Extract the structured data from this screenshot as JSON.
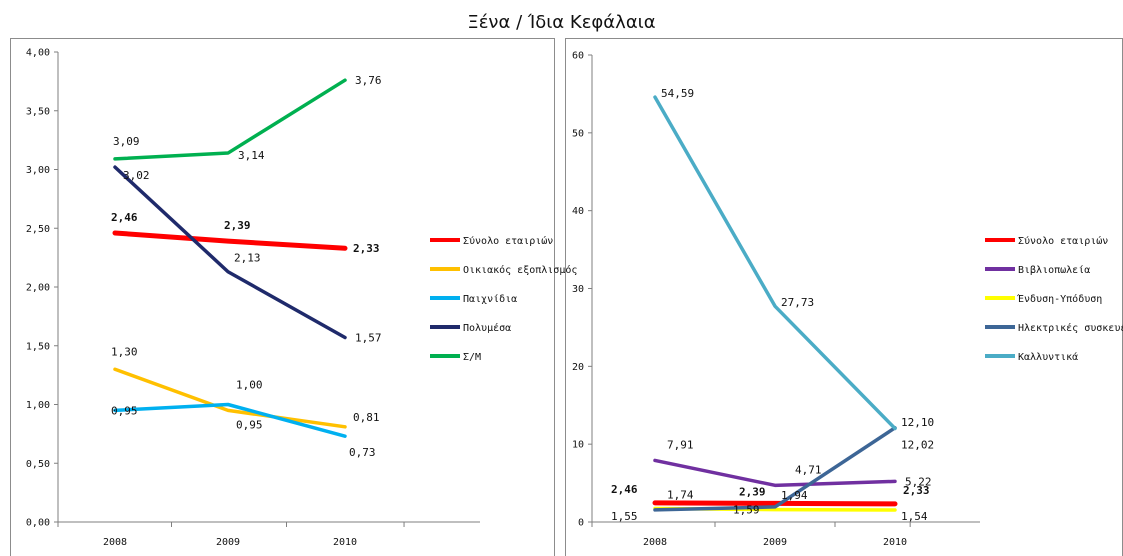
{
  "title": "Ξένα / Ίδια Κεφάλαια",
  "chart_data": [
    {
      "type": "line",
      "categories": [
        "2008",
        "2009",
        "2010"
      ],
      "ylim": [
        0,
        4
      ],
      "ytick_step": 0.5,
      "ytick_labels": [
        "0,00",
        "0,50",
        "1,00",
        "1,50",
        "2,00",
        "2,50",
        "3,00",
        "3,50",
        "4,00"
      ],
      "grid": false,
      "legend_position": "right",
      "series": [
        {
          "name": "Σύνολο εταιριών",
          "color": "#ff0000",
          "values": [
            2.46,
            2.39,
            2.33
          ],
          "labels": [
            "2,46",
            "2,39",
            "2,33"
          ]
        },
        {
          "name": "Οικιακός εξοπλισμός",
          "color": "#ffc000",
          "values": [
            1.3,
            0.95,
            0.81
          ],
          "labels": [
            "1,30",
            "0,95",
            "0,81"
          ]
        },
        {
          "name": "Παιχνίδια",
          "color": "#00b0f0",
          "values": [
            0.95,
            1.0,
            0.73
          ],
          "labels": [
            "0,95",
            "1,00",
            "0,73"
          ]
        },
        {
          "name": "Πολυμέσα",
          "color": "#1f2a6b",
          "values": [
            3.02,
            2.13,
            1.57
          ],
          "labels": [
            "3,02",
            "2,13",
            "1,57"
          ]
        },
        {
          "name": "Σ/Μ",
          "color": "#00b050",
          "values": [
            3.09,
            3.14,
            3.76
          ],
          "labels": [
            "3,09",
            "3,14",
            "3,76"
          ]
        }
      ]
    },
    {
      "type": "line",
      "categories": [
        "2008",
        "2009",
        "2010"
      ],
      "ylim": [
        0,
        60
      ],
      "ytick_step": 10,
      "ytick_labels": [
        "0",
        "10",
        "20",
        "30",
        "40",
        "50",
        "60"
      ],
      "grid": false,
      "legend_position": "right",
      "series": [
        {
          "name": "Σύνολο εταιριών",
          "color": "#ff0000",
          "values": [
            2.46,
            2.39,
            2.33
          ],
          "labels": [
            "2,46",
            "2,39",
            "2,33"
          ]
        },
        {
          "name": "Βιβλιοπωλεία",
          "color": "#7030a0",
          "values": [
            7.91,
            4.71,
            5.22
          ],
          "labels": [
            "7,91",
            "4,71",
            "5,22"
          ]
        },
        {
          "name": "Ένδυση-Υπόδυση",
          "color": "#ffff00",
          "values": [
            1.74,
            1.59,
            1.54
          ],
          "labels": [
            "1,74",
            "1,59",
            "1,54"
          ]
        },
        {
          "name": "Ηλεκτρικές συσκευές",
          "color": "#3d6696",
          "values": [
            1.55,
            1.94,
            12.1
          ],
          "labels": [
            "1,55",
            "1,94",
            "12,10"
          ]
        },
        {
          "name": "Καλλυντικά",
          "color": "#4bacc6",
          "values": [
            54.59,
            27.73,
            12.02
          ],
          "labels": [
            "54,59",
            "27,73",
            "12,02"
          ]
        }
      ]
    }
  ]
}
